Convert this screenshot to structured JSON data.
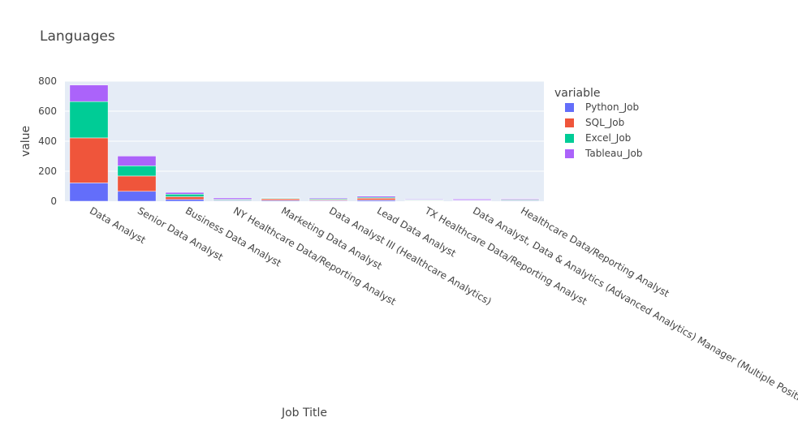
{
  "chart_data": {
    "type": "bar",
    "barmode": "stack",
    "title": "Languages",
    "xlabel": "Job Title",
    "ylabel": "value",
    "ylim": [
      0,
      800
    ],
    "yticks": [
      0,
      200,
      400,
      600,
      800
    ],
    "grid": true,
    "legend_title": "variable",
    "legend_position": "top-right",
    "categories": [
      "Data Analyst",
      "Senior Data Analyst",
      "Business Data Analyst",
      "NY Healthcare Data/Reporting Analyst",
      "Marketing Data Analyst",
      "Data Analyst III (Healthcare Analytics)",
      "Lead Data Analyst",
      "TX Healthcare Data/Reporting Analyst",
      "Data Analyst, Data & Analytics (Advanced Analytics) Manager (Multiple Positions)",
      "Healthcare Data/Reporting Analyst"
    ],
    "series": [
      {
        "name": "Python_Job",
        "color": "#636efa",
        "values": [
          122,
          66,
          12,
          4,
          6,
          5,
          8,
          3,
          3,
          4
        ]
      },
      {
        "name": "SQL_Job",
        "color": "#ef553b",
        "values": [
          300,
          102,
          18,
          4,
          10,
          5,
          12,
          3,
          2,
          4
        ]
      },
      {
        "name": "Excel_Job",
        "color": "#00cc96",
        "values": [
          242,
          68,
          17,
          5,
          4,
          5,
          6,
          4,
          2,
          4
        ]
      },
      {
        "name": "Tableau_Job",
        "color": "#ab63fa",
        "values": [
          110,
          65,
          12,
          9,
          3,
          6,
          8,
          4,
          7,
          5
        ]
      }
    ]
  }
}
